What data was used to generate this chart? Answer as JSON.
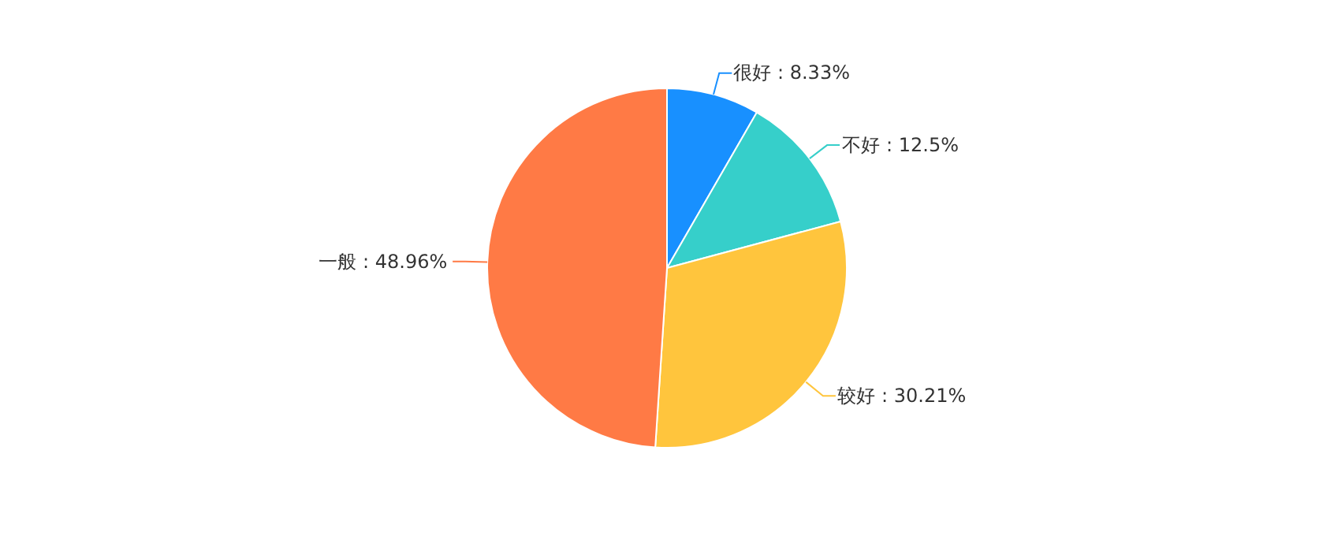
{
  "chart_data": {
    "type": "pie",
    "categories": [
      "很好",
      "不好",
      "较好",
      "一般"
    ],
    "values": [
      8.33,
      12.5,
      30.21,
      48.96
    ],
    "colors": [
      "#1890ff",
      "#36cfca",
      "#ffc53d",
      "#ff7a45"
    ],
    "value_labels": [
      ": 8.33%",
      ": 12.5%",
      ": 30.21%",
      ": 48.96%"
    ],
    "legend": false
  }
}
